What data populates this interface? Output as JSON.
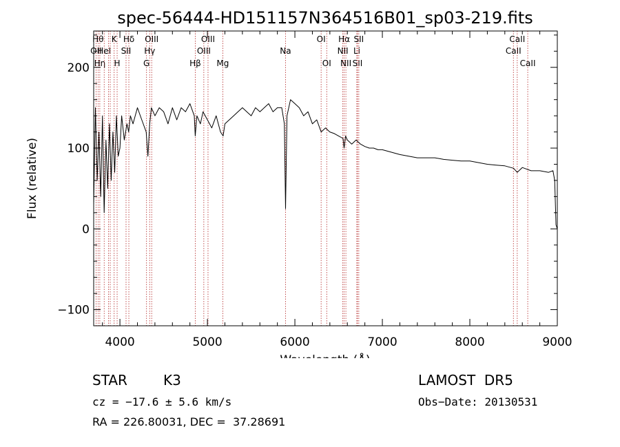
{
  "chart_data": {
    "type": "line",
    "title": "spec-56444-HD151157N364516B01_sp03-219.fits",
    "xlabel": "Wavelength (Å)",
    "ylabel": "Flux (relative)",
    "xlim": [
      3700,
      9000
    ],
    "ylim": [
      -120,
      245
    ],
    "xticks": [
      4000,
      5000,
      6000,
      7000,
      8000,
      9000
    ],
    "yticks": [
      -100,
      0,
      100,
      200
    ],
    "grid": false,
    "series": [
      {
        "x": [
          3700,
          3720,
          3740,
          3760,
          3780,
          3800,
          3820,
          3840,
          3860,
          3880,
          3900,
          3920,
          3940,
          3960,
          3980,
          4000,
          4020,
          4050,
          4080,
          4100,
          4120,
          4150,
          4200,
          4250,
          4300,
          4320,
          4340,
          4360,
          4400,
          4450,
          4500,
          4550,
          4600,
          4650,
          4700,
          4750,
          4800,
          4850,
          4861,
          4880,
          4920,
          4950,
          5000,
          5050,
          5100,
          5150,
          5180,
          5200,
          5250,
          5300,
          5350,
          5400,
          5450,
          5500,
          5550,
          5600,
          5650,
          5700,
          5750,
          5800,
          5850,
          5880,
          5893,
          5910,
          5950,
          6000,
          6050,
          6100,
          6150,
          6200,
          6250,
          6300,
          6350,
          6400,
          6450,
          6500,
          6550,
          6563,
          6580,
          6600,
          6650,
          6700,
          6750,
          6800,
          6850,
          6900,
          6950,
          7000,
          7100,
          7200,
          7300,
          7400,
          7500,
          7600,
          7700,
          7800,
          7900,
          8000,
          8100,
          8200,
          8300,
          8400,
          8500,
          8542,
          8600,
          8700,
          8800,
          8900,
          8950,
          8970,
          8985,
          9000
        ],
        "y": [
          30,
          150,
          60,
          120,
          40,
          140,
          20,
          110,
          50,
          130,
          60,
          120,
          70,
          140,
          90,
          100,
          140,
          110,
          130,
          120,
          140,
          130,
          150,
          135,
          120,
          90,
          130,
          150,
          140,
          150,
          145,
          130,
          150,
          135,
          150,
          145,
          155,
          140,
          115,
          140,
          130,
          145,
          135,
          125,
          140,
          120,
          115,
          130,
          135,
          140,
          145,
          150,
          145,
          140,
          150,
          145,
          150,
          155,
          145,
          150,
          150,
          130,
          25,
          140,
          160,
          155,
          150,
          140,
          145,
          130,
          135,
          120,
          125,
          120,
          118,
          115,
          112,
          100,
          115,
          110,
          105,
          110,
          105,
          102,
          100,
          100,
          98,
          98,
          95,
          92,
          90,
          88,
          88,
          88,
          86,
          85,
          84,
          84,
          82,
          80,
          79,
          78,
          75,
          70,
          76,
          72,
          72,
          70,
          72,
          60,
          5,
          0
        ]
      }
    ],
    "spectral_lines": [
      {
        "w": 3727,
        "label": "OII",
        "row": 1
      },
      {
        "w": 3750,
        "label": "Hθ",
        "row": 0
      },
      {
        "w": 3770,
        "label": "Hη",
        "row": 2
      },
      {
        "w": 3820,
        "label": "HeI",
        "row": 1
      },
      {
        "w": 3869,
        "label": "",
        "row": 0
      },
      {
        "w": 3889,
        "label": "",
        "row": 0
      },
      {
        "w": 3934,
        "label": "K",
        "row": 0
      },
      {
        "w": 3968,
        "label": "H",
        "row": 2
      },
      {
        "w": 4070,
        "label": "SII",
        "row": 1
      },
      {
        "w": 4102,
        "label": "Hδ",
        "row": 0
      },
      {
        "w": 4304,
        "label": "G",
        "row": 2
      },
      {
        "w": 4340,
        "label": "Hγ",
        "row": 1
      },
      {
        "w": 4363,
        "label": "OIII",
        "row": 0
      },
      {
        "w": 4861,
        "label": "Hβ",
        "row": 2
      },
      {
        "w": 4959,
        "label": "OIII",
        "row": 1
      },
      {
        "w": 5007,
        "label": "OIII",
        "row": 0
      },
      {
        "w": 5176,
        "label": "Mg",
        "row": 2
      },
      {
        "w": 5893,
        "label": "Na",
        "row": 1
      },
      {
        "w": 6300,
        "label": "OI",
        "row": 0
      },
      {
        "w": 6364,
        "label": "OI",
        "row": 2
      },
      {
        "w": 6548,
        "label": "NII",
        "row": 1
      },
      {
        "w": 6563,
        "label": "Hα",
        "row": 0
      },
      {
        "w": 6583,
        "label": "NII",
        "row": 2
      },
      {
        "w": 6708,
        "label": "Li",
        "row": 1
      },
      {
        "w": 6716,
        "label": "SII",
        "row": 2
      },
      {
        "w": 6731,
        "label": "SII",
        "row": 0
      },
      {
        "w": 8498,
        "label": "CaII",
        "row": 1
      },
      {
        "w": 8542,
        "label": "CaII",
        "row": 0
      },
      {
        "w": 8662,
        "label": "CaII",
        "row": 2
      }
    ],
    "colors": {
      "spectrum": "#000000",
      "lines": "#b22222",
      "axes": "#000000"
    }
  },
  "info": {
    "object_class": "STAR",
    "subclass": "K3",
    "survey": "LAMOST  DR5",
    "velocity": "cz = −17.6 ± 5.6 km/s",
    "obs_date": "Obs−Date: 20130531",
    "coords": "RA = 226.80031, DEC =  37.28691"
  }
}
